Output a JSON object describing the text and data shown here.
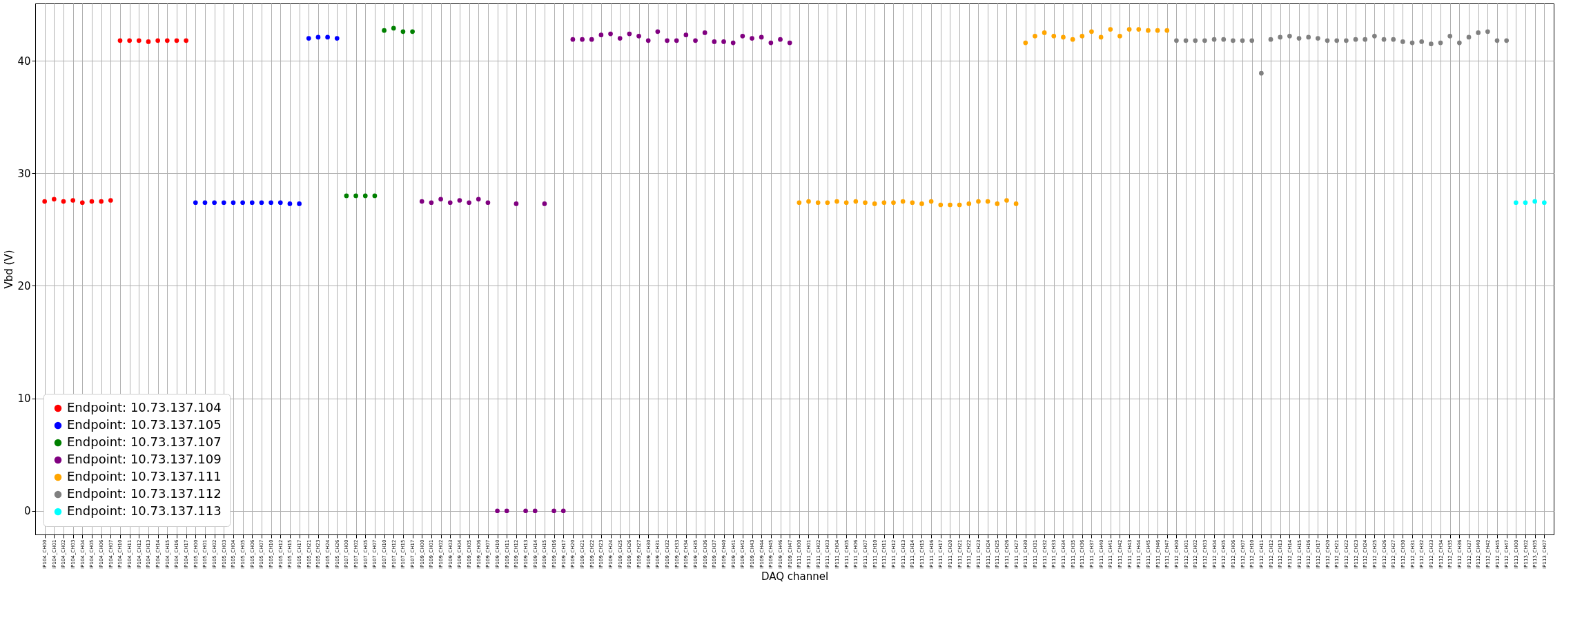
{
  "chart_data": {
    "type": "scatter",
    "xlabel": "DAQ channel",
    "ylabel": "Vbd (V)",
    "categories": [
      "IP104_CH00",
      "IP104_CH01",
      "IP104_CH02",
      "IP104_CH03",
      "IP104_CH04",
      "IP104_CH05",
      "IP104_CH06",
      "IP104_CH07",
      "IP104_CH10",
      "IP104_CH11",
      "IP104_CH12",
      "IP104_CH13",
      "IP104_CH14",
      "IP104_CH15",
      "IP104_CH16",
      "IP104_CH17",
      "IP105_CH00",
      "IP105_CH01",
      "IP105_CH02",
      "IP105_CH03",
      "IP105_CH04",
      "IP105_CH05",
      "IP105_CH06",
      "IP105_CH07",
      "IP105_CH10",
      "IP105_CH12",
      "IP105_CH15",
      "IP105_CH17",
      "IP105_CH21",
      "IP105_CH23",
      "IP105_CH24",
      "IP105_CH26",
      "IP107_CH00",
      "IP107_CH02",
      "IP107_CH05",
      "IP107_CH07",
      "IP107_CH10",
      "IP107_CH12",
      "IP107_CH15",
      "IP107_CH17",
      "IP109_CH00",
      "IP109_CH01",
      "IP109_CH02",
      "IP109_CH03",
      "IP109_CH04",
      "IP109_CH05",
      "IP109_CH06",
      "IP109_CH07",
      "IP109_CH10",
      "IP109_CH11",
      "IP109_CH12",
      "IP109_CH13",
      "IP109_CH14",
      "IP109_CH15",
      "IP109_CH16",
      "IP109_CH17",
      "IP109_CH20",
      "IP109_CH21",
      "IP109_CH22",
      "IP109_CH23",
      "IP109_CH24",
      "IP109_CH25",
      "IP109_CH26",
      "IP109_CH27",
      "IP109_CH30",
      "IP109_CH31",
      "IP109_CH32",
      "IP109_CH33",
      "IP109_CH34",
      "IP109_CH35",
      "IP109_CH36",
      "IP109_CH37",
      "IP109_CH40",
      "IP109_CH41",
      "IP109_CH42",
      "IP109_CH43",
      "IP109_CH44",
      "IP109_CH45",
      "IP109_CH46",
      "IP109_CH47",
      "IP111_CH00",
      "IP111_CH01",
      "IP111_CH02",
      "IP111_CH03",
      "IP111_CH04",
      "IP111_CH05",
      "IP111_CH06",
      "IP111_CH07",
      "IP111_CH10",
      "IP111_CH11",
      "IP111_CH12",
      "IP111_CH13",
      "IP111_CH14",
      "IP111_CH15",
      "IP111_CH16",
      "IP111_CH17",
      "IP111_CH20",
      "IP111_CH21",
      "IP111_CH22",
      "IP111_CH23",
      "IP111_CH24",
      "IP111_CH25",
      "IP111_CH26",
      "IP111_CH27",
      "IP111_CH30",
      "IP111_CH31",
      "IP111_CH32",
      "IP111_CH33",
      "IP111_CH34",
      "IP111_CH35",
      "IP111_CH36",
      "IP111_CH37",
      "IP111_CH40",
      "IP111_CH41",
      "IP111_CH42",
      "IP111_CH43",
      "IP111_CH44",
      "IP111_CH45",
      "IP111_CH46",
      "IP111_CH47",
      "IP112_CH00",
      "IP112_CH01",
      "IP112_CH02",
      "IP112_CH03",
      "IP112_CH04",
      "IP112_CH05",
      "IP112_CH06",
      "IP112_CH07",
      "IP112_CH10",
      "IP112_CH11",
      "IP112_CH12",
      "IP112_CH13",
      "IP112_CH14",
      "IP112_CH15",
      "IP112_CH16",
      "IP112_CH17",
      "IP112_CH20",
      "IP112_CH21",
      "IP112_CH22",
      "IP112_CH23",
      "IP112_CH24",
      "IP112_CH25",
      "IP112_CH26",
      "IP112_CH27",
      "IP112_CH30",
      "IP112_CH31",
      "IP112_CH32",
      "IP112_CH33",
      "IP112_CH34",
      "IP112_CH35",
      "IP112_CH36",
      "IP112_CH37",
      "IP112_CH40",
      "IP112_CH42",
      "IP112_CH45",
      "IP112_CH47",
      "IP113_CH00",
      "IP113_CH02",
      "IP113_CH05",
      "IP113_CH07"
    ],
    "ylim": [
      -2.1,
      45.1
    ],
    "yticks": [
      0,
      10,
      20,
      30,
      40
    ],
    "grid": true,
    "legend": "bottom left",
    "marker": "circle",
    "series": [
      {
        "name": "Endpoint: 10.73.137.104",
        "color": "#ff0000",
        "values": [
          27.5,
          27.7,
          27.5,
          27.6,
          27.4,
          27.5,
          27.5,
          27.6,
          41.8,
          41.8,
          41.8,
          41.7,
          41.8,
          41.8,
          41.8,
          41.8,
          null,
          null,
          null,
          null,
          null,
          null,
          null,
          null,
          null,
          null,
          null,
          null,
          null,
          null,
          null,
          null,
          null,
          null,
          null,
          null,
          null,
          null,
          null,
          null,
          null,
          null,
          null,
          null,
          null,
          null,
          null,
          null,
          null,
          null,
          null,
          null,
          null,
          null,
          null,
          null,
          null,
          null,
          null,
          null,
          null,
          null,
          null,
          null,
          null,
          null,
          null,
          null,
          null,
          null,
          null,
          null,
          null,
          null,
          null,
          null,
          null,
          null,
          null,
          null,
          null,
          null,
          null,
          null,
          null,
          null,
          null,
          null,
          null,
          null,
          null,
          null,
          null,
          null,
          null,
          null,
          null,
          null,
          null,
          null,
          null,
          null,
          null,
          null,
          null,
          null,
          null,
          null,
          null,
          null,
          null,
          null,
          null,
          null,
          null,
          null,
          null,
          null,
          null,
          null,
          null,
          null,
          null,
          null,
          null,
          null,
          null,
          null,
          null,
          null,
          null,
          null,
          null,
          null,
          null,
          null,
          null,
          null,
          null,
          null,
          null,
          null,
          null,
          null,
          null,
          null,
          null,
          null,
          null,
          null,
          null,
          null,
          null,
          null,
          null,
          null,
          null,
          null,
          null,
          null
        ]
      },
      {
        "name": "Endpoint: 10.73.137.105",
        "color": "#0000ff",
        "values": [
          null,
          null,
          null,
          null,
          null,
          null,
          null,
          null,
          null,
          null,
          null,
          null,
          null,
          null,
          null,
          null,
          27.4,
          27.4,
          27.4,
          27.4,
          27.4,
          27.4,
          27.4,
          27.4,
          27.4,
          27.4,
          27.3,
          27.3,
          42.0,
          42.1,
          42.1,
          42.0,
          null,
          null,
          null,
          null,
          null,
          null,
          null,
          null,
          null,
          null,
          null,
          null,
          null,
          null,
          null,
          null,
          null,
          null,
          null,
          null,
          null,
          null,
          null,
          null,
          null,
          null,
          null,
          null,
          null,
          null,
          null,
          null,
          null,
          null,
          null,
          null,
          null,
          null,
          null,
          null,
          null,
          null,
          null,
          null,
          null,
          null,
          null,
          null,
          null,
          null,
          null,
          null,
          null,
          null,
          null,
          null,
          null,
          null,
          null,
          null,
          null,
          null,
          null,
          null,
          null,
          null,
          null,
          null,
          null,
          null,
          null,
          null,
          null,
          null,
          null,
          null,
          null,
          null,
          null,
          null,
          null,
          null,
          null,
          null,
          null,
          null,
          null,
          null,
          null,
          null,
          null,
          null,
          null,
          null,
          null,
          null,
          null,
          null,
          null,
          null,
          null,
          null,
          null,
          null,
          null,
          null,
          null,
          null,
          null,
          null,
          null,
          null,
          null,
          null,
          null,
          null,
          null,
          null,
          null,
          null,
          null,
          null,
          null,
          null,
          null,
          null,
          null,
          null
        ]
      },
      {
        "name": "Endpoint: 10.73.137.107",
        "color": "#008000",
        "values": [
          null,
          null,
          null,
          null,
          null,
          null,
          null,
          null,
          null,
          null,
          null,
          null,
          null,
          null,
          null,
          null,
          null,
          null,
          null,
          null,
          null,
          null,
          null,
          null,
          null,
          null,
          null,
          null,
          null,
          null,
          null,
          null,
          28.0,
          28.0,
          28.0,
          28.0,
          42.7,
          42.9,
          42.6,
          42.6,
          null,
          null,
          null,
          null,
          null,
          null,
          null,
          null,
          null,
          null,
          null,
          null,
          null,
          null,
          null,
          null,
          null,
          null,
          null,
          null,
          null,
          null,
          null,
          null,
          null,
          null,
          null,
          null,
          null,
          null,
          null,
          null,
          null,
          null,
          null,
          null,
          null,
          null,
          null,
          null,
          null,
          null,
          null,
          null,
          null,
          null,
          null,
          null,
          null,
          null,
          null,
          null,
          null,
          null,
          null,
          null,
          null,
          null,
          null,
          null,
          null,
          null,
          null,
          null,
          null,
          null,
          null,
          null,
          null,
          null,
          null,
          null,
          null,
          null,
          null,
          null,
          null,
          null,
          null,
          null,
          null,
          null,
          null,
          null,
          null,
          null,
          null,
          null,
          null,
          null,
          null,
          null,
          null,
          null,
          null,
          null,
          null,
          null,
          null,
          null,
          null,
          null,
          null,
          null,
          null,
          null,
          null,
          null,
          null,
          null,
          null,
          null,
          null,
          null,
          null,
          null,
          null,
          null,
          null,
          null
        ]
      },
      {
        "name": "Endpoint: 10.73.137.109",
        "color": "#800080",
        "values": [
          null,
          null,
          null,
          null,
          null,
          null,
          null,
          null,
          null,
          null,
          null,
          null,
          null,
          null,
          null,
          null,
          null,
          null,
          null,
          null,
          null,
          null,
          null,
          null,
          null,
          null,
          null,
          null,
          null,
          null,
          null,
          null,
          null,
          null,
          null,
          null,
          null,
          null,
          null,
          null,
          27.5,
          27.4,
          27.7,
          27.4,
          27.6,
          27.4,
          27.7,
          27.4,
          0,
          0,
          27.3,
          0,
          0,
          27.3,
          0,
          0,
          41.9,
          41.9,
          41.9,
          42.3,
          42.4,
          42.0,
          42.4,
          42.2,
          41.8,
          42.6,
          41.8,
          41.8,
          42.3,
          41.8,
          42.5,
          41.7,
          41.7,
          41.6,
          42.2,
          42.0,
          42.1,
          41.6,
          41.9,
          41.6,
          null,
          null,
          null,
          null,
          null,
          null,
          null,
          null,
          null,
          null,
          null,
          null,
          null,
          null,
          null,
          null,
          null,
          null,
          null,
          null,
          null,
          null,
          null,
          null,
          null,
          null,
          null,
          null,
          null,
          null,
          null,
          null,
          null,
          null,
          null,
          null,
          null,
          null,
          null,
          null,
          null,
          null,
          null,
          null,
          null,
          null,
          null,
          null,
          null,
          null,
          null,
          null,
          null,
          null,
          null,
          null,
          null,
          null,
          null,
          null,
          null,
          null,
          null,
          null,
          null,
          null,
          null,
          null,
          null,
          null,
          null,
          null,
          null,
          null,
          null,
          null,
          null,
          null,
          null,
          null
        ]
      },
      {
        "name": "Endpoint: 10.73.137.111",
        "color": "#ffa500",
        "values": [
          null,
          null,
          null,
          null,
          null,
          null,
          null,
          null,
          null,
          null,
          null,
          null,
          null,
          null,
          null,
          null,
          null,
          null,
          null,
          null,
          null,
          null,
          null,
          null,
          null,
          null,
          null,
          null,
          null,
          null,
          null,
          null,
          null,
          null,
          null,
          null,
          null,
          null,
          null,
          null,
          null,
          null,
          null,
          null,
          null,
          null,
          null,
          null,
          null,
          null,
          null,
          null,
          null,
          null,
          null,
          null,
          null,
          null,
          null,
          null,
          null,
          null,
          null,
          null,
          null,
          null,
          null,
          null,
          null,
          null,
          null,
          null,
          null,
          null,
          null,
          null,
          null,
          null,
          null,
          null,
          27.4,
          27.5,
          27.4,
          27.4,
          27.5,
          27.4,
          27.5,
          27.4,
          27.3,
          27.4,
          27.4,
          27.5,
          27.4,
          27.3,
          27.5,
          27.2,
          27.2,
          27.2,
          27.3,
          27.5,
          27.5,
          27.3,
          27.6,
          27.3,
          41.6,
          42.2,
          42.5,
          42.2,
          42.1,
          41.9,
          42.2,
          42.6,
          42.1,
          42.8,
          42.2,
          42.8,
          42.8,
          42.7,
          42.7,
          42.7,
          null,
          null,
          null,
          null,
          null,
          null,
          null,
          null,
          null,
          null,
          null,
          null,
          null,
          null,
          null,
          null,
          null,
          null,
          null,
          null,
          null,
          null,
          null,
          null,
          null,
          null,
          null,
          null,
          null,
          null,
          null,
          null,
          null,
          null,
          null,
          null,
          null,
          null,
          null,
          null
        ]
      },
      {
        "name": "Endpoint: 10.73.137.112",
        "color": "#808080",
        "values": [
          null,
          null,
          null,
          null,
          null,
          null,
          null,
          null,
          null,
          null,
          null,
          null,
          null,
          null,
          null,
          null,
          null,
          null,
          null,
          null,
          null,
          null,
          null,
          null,
          null,
          null,
          null,
          null,
          null,
          null,
          null,
          null,
          null,
          null,
          null,
          null,
          null,
          null,
          null,
          null,
          null,
          null,
          null,
          null,
          null,
          null,
          null,
          null,
          null,
          null,
          null,
          null,
          null,
          null,
          null,
          null,
          null,
          null,
          null,
          null,
          null,
          null,
          null,
          null,
          null,
          null,
          null,
          null,
          null,
          null,
          null,
          null,
          null,
          null,
          null,
          null,
          null,
          null,
          null,
          null,
          null,
          null,
          null,
          null,
          null,
          null,
          null,
          null,
          null,
          null,
          null,
          null,
          null,
          null,
          null,
          null,
          null,
          null,
          null,
          null,
          null,
          null,
          null,
          null,
          null,
          null,
          null,
          null,
          null,
          null,
          null,
          null,
          null,
          null,
          null,
          null,
          null,
          null,
          null,
          null,
          41.8,
          41.8,
          41.8,
          41.8,
          41.9,
          41.9,
          41.8,
          41.8,
          41.8,
          38.9,
          41.9,
          42.1,
          42.2,
          42.0,
          42.1,
          42.0,
          41.8,
          41.8,
          41.8,
          41.9,
          41.9,
          42.2,
          41.9,
          41.9,
          41.7,
          41.6,
          41.7,
          41.5,
          41.6,
          42.2,
          41.6,
          42.1,
          42.5,
          42.6,
          41.8,
          41.8,
          null,
          null,
          null,
          null
        ]
      },
      {
        "name": "Endpoint: 10.73.137.113",
        "color": "#00ffff",
        "values": [
          null,
          null,
          null,
          null,
          null,
          null,
          null,
          null,
          null,
          null,
          null,
          null,
          null,
          null,
          null,
          null,
          null,
          null,
          null,
          null,
          null,
          null,
          null,
          null,
          null,
          null,
          null,
          null,
          null,
          null,
          null,
          null,
          null,
          null,
          null,
          null,
          null,
          null,
          null,
          null,
          null,
          null,
          null,
          null,
          null,
          null,
          null,
          null,
          null,
          null,
          null,
          null,
          null,
          null,
          null,
          null,
          null,
          null,
          null,
          null,
          null,
          null,
          null,
          null,
          null,
          null,
          null,
          null,
          null,
          null,
          null,
          null,
          null,
          null,
          null,
          null,
          null,
          null,
          null,
          null,
          null,
          null,
          null,
          null,
          null,
          null,
          null,
          null,
          null,
          null,
          null,
          null,
          null,
          null,
          null,
          null,
          null,
          null,
          null,
          null,
          null,
          null,
          null,
          null,
          null,
          null,
          null,
          null,
          null,
          null,
          null,
          null,
          null,
          null,
          null,
          null,
          null,
          null,
          null,
          null,
          null,
          null,
          null,
          null,
          null,
          null,
          null,
          null,
          null,
          null,
          null,
          null,
          null,
          null,
          null,
          null,
          null,
          null,
          null,
          null,
          null,
          null,
          null,
          null,
          null,
          null,
          null,
          null,
          null,
          null,
          null,
          null,
          null,
          null,
          null,
          null,
          27.4,
          27.4,
          27.5,
          27.4
        ]
      }
    ]
  }
}
